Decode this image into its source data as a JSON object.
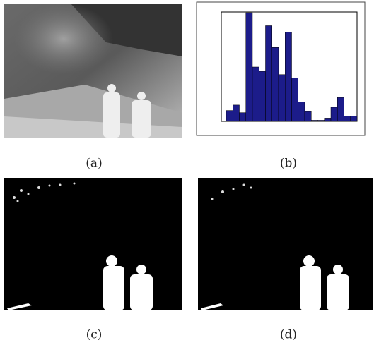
{
  "captions": [
    "(a)",
    "(b)",
    "(c)",
    "(d)"
  ],
  "chart_data": {
    "type": "bar",
    "categories": [
      null,
      null,
      null,
      null,
      null,
      null,
      null,
      null,
      null,
      null,
      null,
      null,
      null,
      null,
      null,
      null,
      null,
      null,
      null,
      null
    ],
    "values": [
      1.0,
      1.5,
      0.8,
      10,
      5.0,
      4.6,
      8.8,
      6.8,
      4.3,
      8.2,
      4.0,
      1.8,
      0.9,
      0.1,
      0.1,
      0.3,
      1.3,
      2.2,
      0.5,
      0.5
    ],
    "ylim": [
      0,
      10
    ],
    "color": "#1c1c8a"
  }
}
